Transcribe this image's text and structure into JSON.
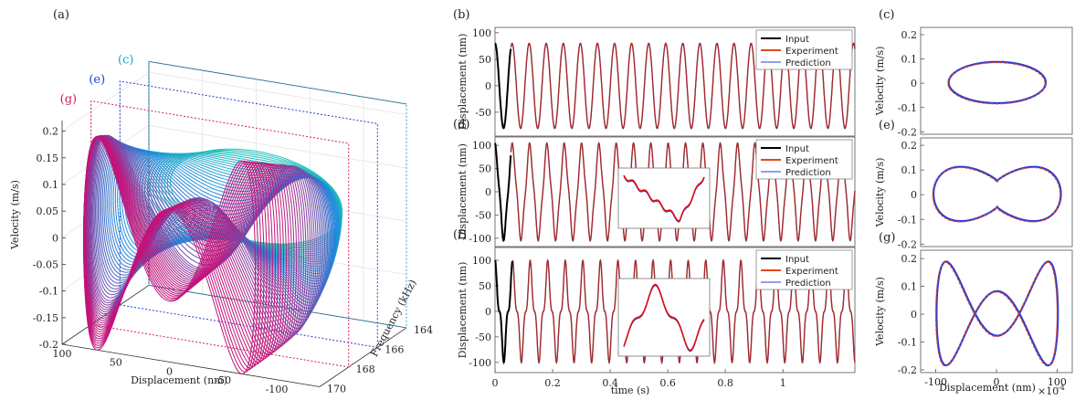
{
  "colors": {
    "input": "#000000",
    "experiment": "#e8451c",
    "prediction": "#2b3bd6",
    "panel_c": "#1aa7d8",
    "panel_e": "#1e3fd8",
    "panel_g": "#d81a5e",
    "teal": "#24c7b6",
    "blue": "#1e88e0",
    "magenta": "#c2147a"
  },
  "chart_data": [
    {
      "id": "a",
      "type": "line",
      "panel_label": "(a)",
      "is_3d": true,
      "xlabel": "Displacement (nm)",
      "ylabel": "Frequency (kHz)",
      "zlabel": "Velocity (m/s)",
      "x_ticks": [
        "100",
        "50",
        "0",
        "-50",
        "-100"
      ],
      "y_ticks": [
        "164",
        "166",
        "168",
        "170"
      ],
      "z_ticks": [
        "0.2",
        "0.15",
        "0.1",
        "0.05",
        "0",
        "-0.05",
        "-0.1",
        "-0.15",
        "-0.2"
      ],
      "xlim": [
        -120,
        120
      ],
      "ylim": [
        164,
        170
      ],
      "zlim": [
        -0.2,
        0.22
      ],
      "slice_labels": [
        "(c)",
        "(e)",
        "(g)"
      ],
      "slices_khz": [
        164,
        166,
        168
      ],
      "frequency_range_khz": [
        164,
        170
      ],
      "grid": true
    },
    {
      "id": "b",
      "type": "line",
      "panel_label": "(b)",
      "ylabel": "Displacement (nm)",
      "y_ticks": [
        "100",
        "50",
        "0",
        "-50"
      ],
      "ylim": [
        -95,
        110
      ],
      "xlim": [
        0,
        0.000125
      ],
      "legend": [
        "Input",
        "Experiment",
        "Prediction"
      ],
      "legend_position": "top-right",
      "amplitude_nm": 80,
      "period_s": 5.93e-06,
      "input_end_s": 5.5e-06,
      "harmonics": [
        [
          1,
          1,
          0
        ]
      ]
    },
    {
      "id": "d",
      "type": "line",
      "panel_label": "(d)",
      "ylabel": "Displacement (nm)",
      "y_ticks": [
        "100",
        "50",
        "0",
        "-50",
        "-100"
      ],
      "ylim": [
        -118,
        118
      ],
      "xlim": [
        0,
        0.000125
      ],
      "legend": [
        "Input",
        "Experiment",
        "Prediction"
      ],
      "legend_position": "top-right",
      "amplitude_nm": 105,
      "period_s": 6.02e-06,
      "input_end_s": 5.5e-06,
      "harmonics": [
        [
          1,
          1,
          0
        ],
        [
          3,
          0.12,
          0.3
        ]
      ],
      "has_inset": true
    },
    {
      "id": "f",
      "type": "line",
      "panel_label": "(f)",
      "ylabel": "Displacement (nm)",
      "y_ticks": [
        "100",
        "50",
        "0",
        "-50",
        "-100"
      ],
      "ylim": [
        -120,
        125
      ],
      "xlim": [
        0,
        0.000125
      ],
      "xlabel": "time (s)",
      "x_ticks": [
        "0",
        "0.2",
        "0.4",
        "0.6",
        "0.8",
        "1"
      ],
      "x_tick_values": [
        0,
        2e-05,
        4e-05,
        6e-05,
        8e-05,
        0.0001
      ],
      "x_exponent": "×10",
      "x_exponent_power": "-4",
      "legend": [
        "Input",
        "Experiment",
        "Prediction"
      ],
      "legend_position": "top-right",
      "amplitude_nm": 100,
      "period_s": 6.1e-06,
      "input_end_s": 6e-06,
      "harmonics": [
        [
          1,
          1,
          0
        ],
        [
          3,
          0.3,
          0
        ]
      ],
      "has_inset": true
    },
    {
      "id": "c",
      "type": "line",
      "panel_label": "(c)",
      "ylabel": "Velocity (m/s)",
      "y_ticks": [
        "0.2",
        "0.1",
        "0",
        "-0.1",
        "-0.2"
      ],
      "ylim": [
        -0.21,
        0.23
      ],
      "xlim": [
        -125,
        125
      ],
      "orbit": "ellipse",
      "x_amplitude_nm": 80,
      "v_amplitude": 0.085
    },
    {
      "id": "e",
      "type": "line",
      "panel_label": "(e)",
      "ylabel": "Velocity (m/s)",
      "y_ticks": [
        "0.2",
        "0.1",
        "0",
        "-0.1",
        "-0.2"
      ],
      "ylim": [
        -0.21,
        0.23
      ],
      "xlim": [
        -125,
        125
      ],
      "orbit": "two-lobe",
      "x_amplitude_nm": 105,
      "v_amplitude": 0.15
    },
    {
      "id": "g",
      "type": "line",
      "panel_label": "(g)",
      "ylabel": "Velocity (m/s)",
      "xlabel": "Displacement (nm)",
      "y_ticks": [
        "0.2",
        "0.1",
        "0",
        "-0.1",
        "-0.2"
      ],
      "ylim": [
        -0.21,
        0.23
      ],
      "x_ticks": [
        "-100",
        "0",
        "100"
      ],
      "x_tick_values": [
        -100,
        0,
        100
      ],
      "xlim": [
        -125,
        125
      ],
      "orbit": "three-lobe",
      "x_amplitude_nm": 100,
      "v_amplitude": 0.2
    }
  ]
}
